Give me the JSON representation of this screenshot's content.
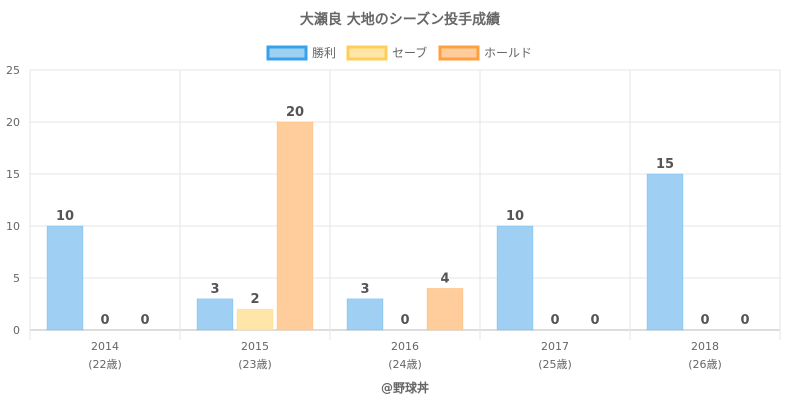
{
  "chart_data": {
    "type": "bar",
    "title": "大瀬良 大地のシーズン投手成績",
    "categories": [
      "2014",
      "2015",
      "2016",
      "2017",
      "2018"
    ],
    "category_sublabels": [
      "(22歳)",
      "(23歳)",
      "(24歳)",
      "(25歳)",
      "(26歳)"
    ],
    "series": [
      {
        "name": "勝利",
        "values": [
          10,
          3,
          3,
          10,
          15
        ],
        "fill": "#9fd0f3",
        "stroke": "#36a2eb"
      },
      {
        "name": "セーブ",
        "values": [
          0,
          2,
          0,
          0,
          0
        ],
        "fill": "#ffe5a8",
        "stroke": "#ffce56"
      },
      {
        "name": "ホールド",
        "values": [
          0,
          20,
          4,
          0,
          0
        ],
        "fill": "#ffcd9b",
        "stroke": "#ff9f40"
      }
    ],
    "ylim": [
      0,
      25
    ],
    "yticks": [
      0,
      5,
      10,
      15,
      20,
      25
    ],
    "grid": true,
    "legend_position": "top",
    "data_labels": true
  },
  "footer": {
    "credit": "@野球丼"
  }
}
